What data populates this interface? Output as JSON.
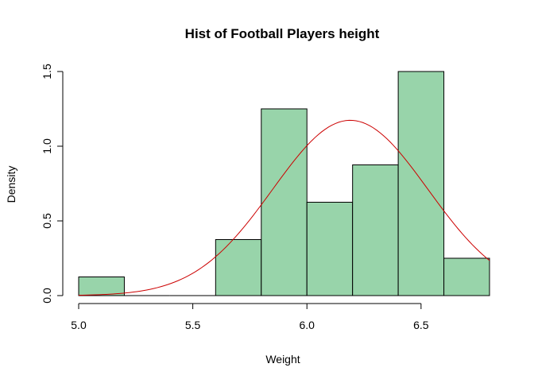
{
  "chart_data": {
    "type": "bar",
    "title": "Hist of Football Players height",
    "xlabel": "Weight",
    "ylabel": "Density",
    "xlim": [
      5.0,
      6.8
    ],
    "ylim": [
      0,
      1.5
    ],
    "x_ticks": [
      5.0,
      5.5,
      6.0,
      6.5
    ],
    "x_tick_labels": [
      "5.0",
      "5.5",
      "6.0",
      "6.5"
    ],
    "y_ticks": [
      0,
      0.5,
      1.0,
      1.5
    ],
    "y_tick_labels": [
      "0.0",
      "0.5",
      "1.0",
      "1.5"
    ],
    "bins": [
      {
        "start": 5.0,
        "end": 5.2,
        "density": 0.125
      },
      {
        "start": 5.2,
        "end": 5.4,
        "density": 0
      },
      {
        "start": 5.4,
        "end": 5.6,
        "density": 0
      },
      {
        "start": 5.6,
        "end": 5.8,
        "density": 0.375
      },
      {
        "start": 5.8,
        "end": 6.0,
        "density": 1.25
      },
      {
        "start": 6.0,
        "end": 6.2,
        "density": 0.625
      },
      {
        "start": 6.2,
        "end": 6.4,
        "density": 0.875
      },
      {
        "start": 6.4,
        "end": 6.6,
        "density": 1.5
      },
      {
        "start": 6.6,
        "end": 6.8,
        "density": 0.25
      }
    ],
    "density_curve": {
      "type": "normal",
      "mean": 6.19,
      "sd": 0.34,
      "x_range": [
        5.0,
        6.8
      ]
    },
    "grid": false,
    "colors": {
      "bar_fill": "#98d4aa",
      "bar_border": "#000000",
      "curve": "#cc0000"
    }
  }
}
